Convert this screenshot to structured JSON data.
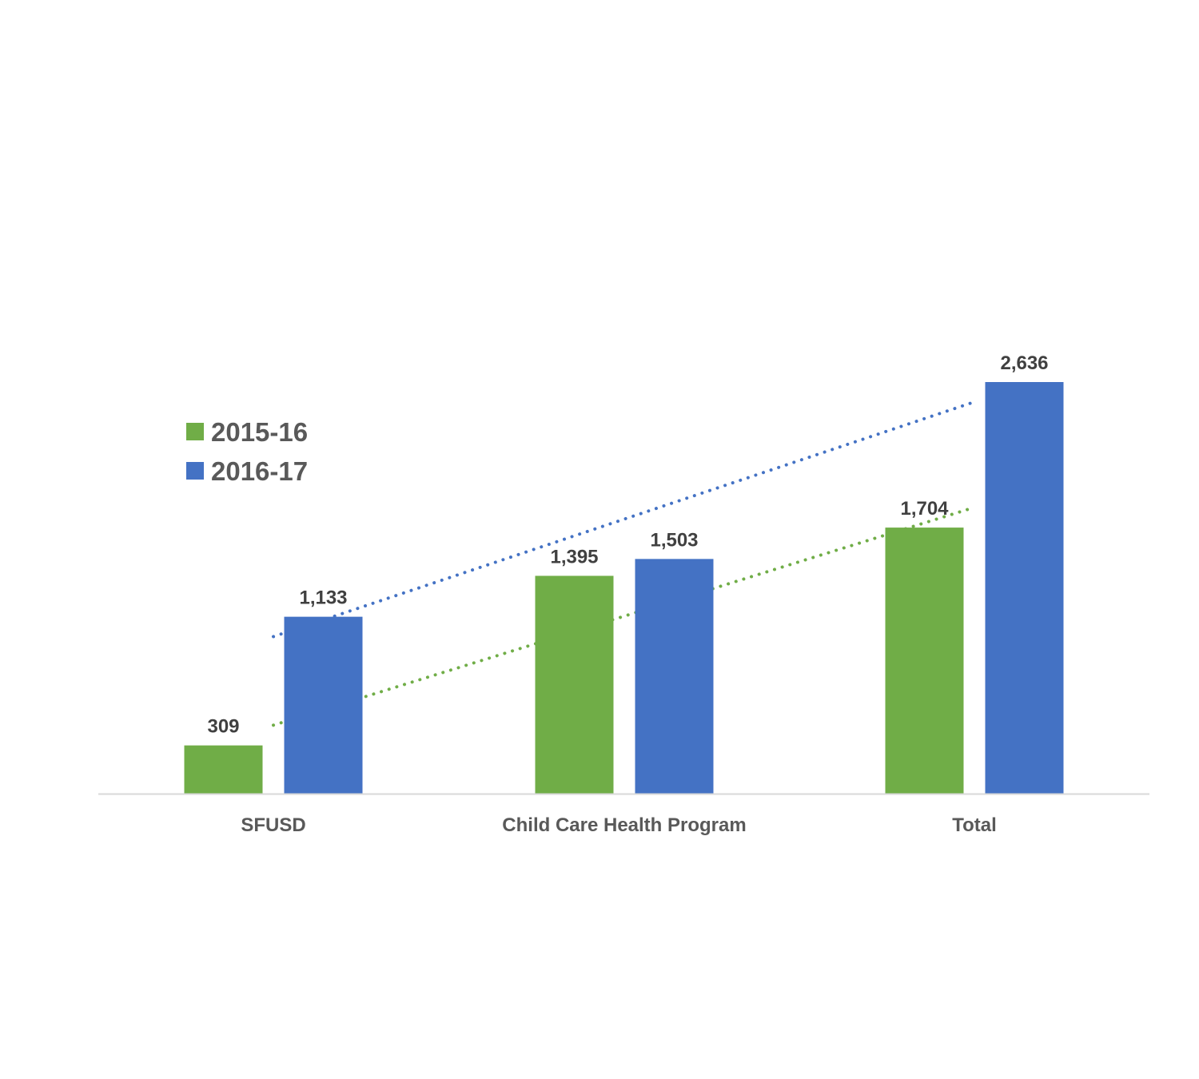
{
  "chart_data": {
    "type": "bar",
    "categories": [
      "SFUSD",
      "Child Care Health Program",
      "Total"
    ],
    "series": [
      {
        "name": "2015-16",
        "values": [
          309,
          1395,
          1704
        ],
        "color": "#70AD47",
        "data_labels": [
          "309",
          "1,395",
          "1,704"
        ]
      },
      {
        "name": "2016-17",
        "values": [
          1133,
          1503,
          2636
        ],
        "color": "#4472C4",
        "data_labels": [
          "1,133",
          "1,503",
          "2,636"
        ]
      }
    ],
    "trendlines": [
      {
        "series": "2015-16",
        "style": "dotted",
        "type": "linear"
      },
      {
        "series": "2016-17",
        "style": "dotted",
        "type": "linear"
      }
    ],
    "ylim": [
      0,
      2700
    ],
    "grid": false,
    "legend": "left",
    "axis_color": "#D9D9D9"
  }
}
